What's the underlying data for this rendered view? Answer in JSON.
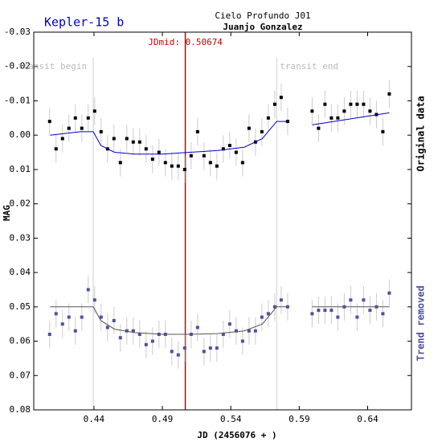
{
  "chart_data": {
    "type": "scatter",
    "title": "Kepler-15 b",
    "observatory": "Cielo Profundo J01",
    "observer": "Juanjo Gonzalez",
    "xlabel": "JD (2456076 + )",
    "ylabel": "MAG",
    "xlim": [
      0.396,
      0.672
    ],
    "ylim": [
      -0.03,
      0.08
    ],
    "y_inverted": true,
    "xticks": [
      0.44,
      0.49,
      0.54,
      0.59,
      0.64
    ],
    "yticks": [
      -0.03,
      -0.02,
      -0.01,
      {
        "value": 0,
        "label": "0.00"
      },
      0.01,
      0.02,
      0.03,
      0.04,
      0.05,
      0.06,
      0.07,
      0.08
    ],
    "markers": [
      {
        "label": "transit begin",
        "x": 0.4395,
        "color": "#d0d0d0"
      },
      {
        "label": "JDmid: 0.50674",
        "x": 0.50674,
        "color": "#cc0000"
      },
      {
        "label": "transit end",
        "x": 0.5735,
        "color": "#d0d0d0"
      }
    ],
    "series": [
      {
        "name": "Original data",
        "color": "#000000",
        "error": 0.004,
        "error_color": "#cccccc",
        "x": [
          0.4076,
          0.4123,
          0.417,
          0.4217,
          0.4264,
          0.4311,
          0.4358,
          0.4405,
          0.4452,
          0.4499,
          0.4546,
          0.4593,
          0.464,
          0.4687,
          0.4734,
          0.4781,
          0.4828,
          0.4875,
          0.4922,
          0.4969,
          0.5016,
          0.5063,
          0.511,
          0.5157,
          0.5204,
          0.5251,
          0.5298,
          0.5345,
          0.5392,
          0.5439,
          0.5486,
          0.5533,
          0.558,
          0.5627,
          0.5674,
          0.5721,
          0.5768,
          0.5815,
          0.5994,
          0.6041,
          0.6088,
          0.6135,
          0.6182,
          0.6229,
          0.6276,
          0.6323,
          0.637,
          0.6417,
          0.6464,
          0.6511,
          0.6558
        ],
        "values": [
          -0.004,
          0.004,
          0.001,
          -0.002,
          -0.005,
          -0.002,
          -0.005,
          -0.007,
          -0.001,
          0.004,
          0.001,
          0.008,
          0.001,
          0.002,
          0.002,
          0.004,
          0.007,
          0.005,
          0.008,
          0.009,
          0.009,
          0.01,
          0.006,
          -0.001,
          0.006,
          0.008,
          0.009,
          0.004,
          0.003,
          0.005,
          0.008,
          -0.002,
          0.002,
          -0.001,
          -0.005,
          -0.009,
          -0.011,
          -0.004,
          -0.007,
          -0.002,
          -0.009,
          -0.005,
          -0.005,
          -0.007,
          -0.009,
          -0.009,
          -0.009,
          -0.007,
          -0.006,
          -0.001,
          -0.012
        ],
        "model": {
          "color": "#0000cc",
          "x": [
            0.408,
            0.43,
            0.4395,
            0.445,
            0.455,
            0.47,
            0.49,
            0.51,
            0.53,
            0.55,
            0.563,
            0.5735,
            0.582,
            0.59,
            0.5994,
            0.6558
          ],
          "values": [
            0.0,
            -0.001,
            -0.001,
            0.003,
            0.005,
            0.0055,
            0.0055,
            0.005,
            0.0045,
            0.0035,
            0.001,
            -0.004,
            -0.004,
            null,
            -0.003,
            -0.0065
          ]
        }
      },
      {
        "name": "Trend removed",
        "color": "#5050a0",
        "error": 0.004,
        "error_color": "#cccccc",
        "x": [
          0.4076,
          0.4123,
          0.417,
          0.4217,
          0.4264,
          0.4311,
          0.4358,
          0.4405,
          0.4452,
          0.4499,
          0.4546,
          0.4593,
          0.464,
          0.4687,
          0.4734,
          0.4781,
          0.4828,
          0.4875,
          0.4922,
          0.4969,
          0.5016,
          0.5063,
          0.511,
          0.5157,
          0.5204,
          0.5251,
          0.5298,
          0.5345,
          0.5392,
          0.5439,
          0.5486,
          0.5533,
          0.558,
          0.5627,
          0.5674,
          0.5721,
          0.5768,
          0.5815,
          0.5994,
          0.6041,
          0.6088,
          0.6135,
          0.6182,
          0.6229,
          0.6276,
          0.6323,
          0.637,
          0.6417,
          0.6464,
          0.6511,
          0.6558
        ],
        "values": [
          0.058,
          0.052,
          0.055,
          0.053,
          0.057,
          0.053,
          0.045,
          0.048,
          0.053,
          0.056,
          0.054,
          0.059,
          0.057,
          0.057,
          0.058,
          0.061,
          0.06,
          0.058,
          0.058,
          0.063,
          0.064,
          0.062,
          0.058,
          0.056,
          0.063,
          0.062,
          0.062,
          0.058,
          0.055,
          0.057,
          0.06,
          0.057,
          0.057,
          0.053,
          0.052,
          0.05,
          0.048,
          0.05,
          0.052,
          0.051,
          0.051,
          0.051,
          0.053,
          0.05,
          0.048,
          0.053,
          0.048,
          0.051,
          0.05,
          0.052,
          0.046
        ],
        "model": {
          "color": "#555555",
          "x": [
            0.408,
            0.4395,
            0.445,
            0.455,
            0.47,
            0.49,
            0.51,
            0.53,
            0.55,
            0.563,
            0.5735,
            0.582,
            0.59,
            0.5994,
            0.6558
          ],
          "values": [
            0.05,
            0.05,
            0.054,
            0.0565,
            0.0575,
            0.058,
            0.058,
            0.0578,
            0.057,
            0.055,
            0.05,
            0.05,
            null,
            0.05,
            0.05
          ]
        }
      }
    ]
  }
}
